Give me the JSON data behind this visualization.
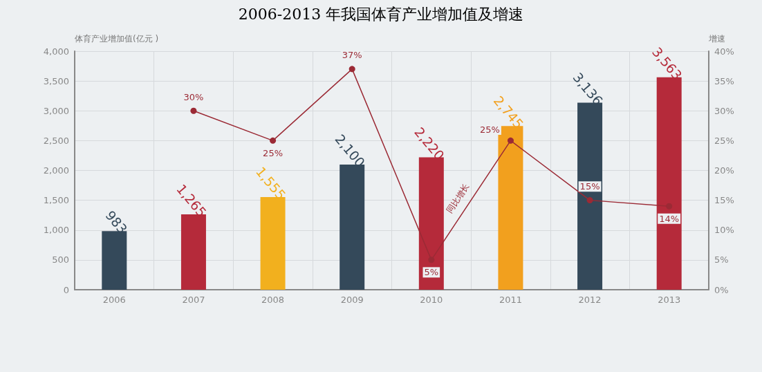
{
  "chart_data": {
    "type": "bar",
    "title": "2006-2013 年我国体育产业增加值及增速",
    "ylabel": "体育产业增加值(亿元 )",
    "y2label": "增速",
    "categories": [
      "2006",
      "2007",
      "2008",
      "2009",
      "2010",
      "2011",
      "2012",
      "2013"
    ],
    "series": [
      {
        "colors": [
          "#34495a",
          "#b52a3a",
          "#f2b01e",
          "#34495a",
          "#b52a3a",
          "#f2a01e",
          "#34495a",
          "#b52a3a"
        ],
        "values": [
          983,
          1265,
          1555,
          2100,
          2220,
          2745,
          3136,
          3563
        ],
        "value_labels": [
          "983",
          "1,265",
          "1,555",
          "2,100",
          "2,220",
          "2,745",
          "3,136",
          "3,563"
        ]
      },
      {
        "type": "line",
        "name": "同比增长",
        "axis": "y2",
        "color": "#9b2a35",
        "values": [
          null,
          30,
          25,
          37,
          5,
          25,
          15,
          14
        ],
        "value_labels": [
          null,
          "30%",
          "25%",
          "37%",
          "5%",
          "25%",
          "15%",
          "14%"
        ]
      }
    ],
    "ylim": [
      0,
      4000
    ],
    "yticks": [
      {
        "value": 0,
        "label": "0"
      },
      {
        "value": 500,
        "label": "500"
      },
      {
        "value": 1000,
        "label": "1,000"
      },
      {
        "value": 1500,
        "label": "1,500"
      },
      {
        "value": 2000,
        "label": "2,000"
      },
      {
        "value": 2500,
        "label": "2,500"
      },
      {
        "value": 3000,
        "label": "3,000"
      },
      {
        "value": 3500,
        "label": "3,500"
      },
      {
        "value": 4000,
        "label": "4,000"
      }
    ],
    "y2lim": [
      0,
      40
    ],
    "y2ticks": [
      {
        "value": 0,
        "label": "0%"
      },
      {
        "value": 5,
        "label": "5%"
      },
      {
        "value": 10,
        "label": "10%"
      },
      {
        "value": 15,
        "label": "15%"
      },
      {
        "value": 20,
        "label": "20%"
      },
      {
        "value": 25,
        "label": "25%"
      },
      {
        "value": 30,
        "label": "30%"
      },
      {
        "value": 35,
        "label": "35%"
      },
      {
        "value": 40,
        "label": "40%"
      }
    ],
    "grid": true,
    "marker": "circle",
    "line_style": "solid"
  }
}
